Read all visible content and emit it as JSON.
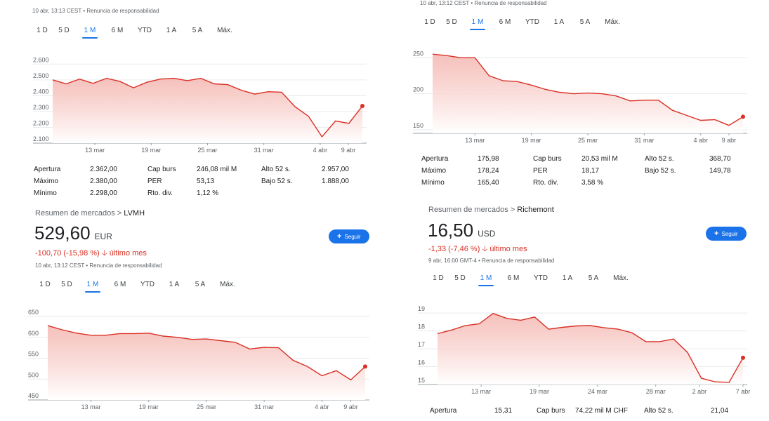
{
  "panels": {
    "tl": {
      "timestamp": "10 abr, 13:13 CEST • Renuncia de responsabilidad",
      "tabs": [
        "1 D",
        "5 D",
        "1 M",
        "6 M",
        "YTD",
        "1 A",
        "5 A",
        "Máx."
      ],
      "active_tab": "1 M",
      "stats": {
        "apertura_label": "Apertura",
        "apertura": "2.362,00",
        "maximo_label": "Máximo",
        "maximo": "2.380,00",
        "minimo_label": "Mínimo",
        "minimo": "2.298,00",
        "capburs_label": "Cap burs",
        "capburs": "246,08 mil M",
        "per_label": "PER",
        "per": "53,13",
        "rtodiv_label": "Rto. div.",
        "rtodiv": "1,12 %",
        "alto52_label": "Alto 52 s.",
        "alto52": "2.957,00",
        "bajo52_label": "Bajo 52 s.",
        "bajo52": "1.888,00"
      }
    },
    "tr": {
      "timestamp": "10 abr, 13:12 CEST • Renuncia de responsabilidad",
      "tabs": [
        "1 D",
        "5 D",
        "1 M",
        "6 M",
        "YTD",
        "1 A",
        "5 A",
        "Máx."
      ],
      "active_tab": "1 M",
      "stats": {
        "apertura_label": "Apertura",
        "apertura": "175,98",
        "maximo_label": "Máximo",
        "maximo": "178,24",
        "minimo_label": "Mínimo",
        "minimo": "165,40",
        "capburs_label": "Cap burs",
        "capburs": "20,53 mil M",
        "per_label": "PER",
        "per": "18,17",
        "rtodiv_label": "Rto. div.",
        "rtodiv": "3,58 %",
        "alto52_label": "Alto 52 s.",
        "alto52": "368,70",
        "bajo52_label": "Bajo 52 s.",
        "bajo52": "149,78"
      }
    },
    "bl": {
      "breadcrumb_prefix": "Resumen de mercados >",
      "company": "LVMH",
      "price": "529,60",
      "currency": "EUR",
      "change": "-100,70 (-15,98 %)",
      "change_arrow": "🡣",
      "change_period": "último mes",
      "follow_label": "Seguir",
      "timestamp": "10 abr, 13:12 CEST • Renuncia de responsabilidad",
      "tabs": [
        "1 D",
        "5 D",
        "1 M",
        "6 M",
        "YTD",
        "1 A",
        "5 A",
        "Máx."
      ],
      "active_tab": "1 M"
    },
    "br": {
      "breadcrumb_prefix": "Resumen de mercados >",
      "company": "Richemont",
      "price": "16,50",
      "currency": "USD",
      "change": "-1,33 (-7,46 %)",
      "change_arrow": "🡣",
      "change_period": "último mes",
      "follow_label": "Seguir",
      "timestamp": "9 abr, 16:00 GMT-4 • Renuncia de responsabilidad",
      "tabs": [
        "1 D",
        "5 D",
        "1 M",
        "6 M",
        "YTD",
        "1 A",
        "5 A",
        "Máx."
      ],
      "active_tab": "1 M",
      "stats": {
        "apertura_label": "Apertura",
        "apertura": "15,31",
        "capburs_label": "Cap burs",
        "capburs": "74,22 mil M CHF",
        "alto52_label": "Alto 52 s.",
        "alto52": "21,04"
      }
    }
  },
  "colors": {
    "line": "#d93025",
    "fill_top": "#f4b6b0",
    "fill_bottom": "#ffffff",
    "grid": "#e8eaed",
    "accent": "#1a73e8"
  },
  "chart_data": [
    {
      "type": "area",
      "x_ticks": [
        "13 mar",
        "19 mar",
        "25 mar",
        "31 mar",
        "4 abr",
        "9 abr"
      ],
      "y_ticks": [
        "2.600",
        "2.500",
        "2.400",
        "2.300",
        "2.200",
        "2.100"
      ],
      "ylim": [
        2100,
        2650
      ],
      "x_range": [
        0,
        22
      ],
      "x_tick_pos": [
        3,
        7,
        11,
        15,
        19,
        21
      ],
      "values": [
        2500,
        2475,
        2505,
        2478,
        2510,
        2490,
        2450,
        2485,
        2505,
        2510,
        2495,
        2510,
        2475,
        2470,
        2435,
        2410,
        2425,
        2422,
        2330,
        2270,
        2140,
        2240,
        2225,
        2335
      ]
    },
    {
      "type": "area",
      "x_ticks": [
        "13 mar",
        "19 mar",
        "25 mar",
        "31 mar",
        "4 abr",
        "9 abr"
      ],
      "y_ticks": [
        "250",
        "200",
        "150"
      ],
      "ylim": [
        145,
        262
      ],
      "x_range": [
        0,
        22
      ],
      "x_tick_pos": [
        3,
        7,
        11,
        15,
        19,
        21
      ],
      "values": [
        255,
        253,
        250,
        250,
        225,
        218,
        217,
        212,
        206,
        202,
        200,
        201,
        200,
        197,
        190,
        191,
        191,
        177,
        170,
        163,
        164,
        156,
        168
      ]
    },
    {
      "type": "area",
      "x_ticks": [
        "13 mar",
        "19 mar",
        "25 mar",
        "31 mar",
        "4 abr",
        "9 abr"
      ],
      "y_ticks": [
        "650",
        "600",
        "550",
        "500",
        "450"
      ],
      "ylim": [
        450,
        650
      ],
      "x_range": [
        0,
        22
      ],
      "x_tick_pos": [
        3,
        7,
        11,
        15,
        19,
        21
      ],
      "values": [
        628,
        618,
        610,
        605,
        605,
        609,
        609,
        610,
        603,
        600,
        595,
        596,
        592,
        588,
        572,
        576,
        575,
        545,
        530,
        508,
        520,
        498,
        530
      ]
    },
    {
      "type": "area",
      "x_ticks": [
        "13 mar",
        "19 mar",
        "24 mar",
        "28 mar",
        "2 abr",
        "7 abr"
      ],
      "y_ticks": [
        "19",
        "18",
        "17",
        "16",
        "15"
      ],
      "ylim": [
        15,
        19.4
      ],
      "x_range": [
        0,
        21
      ],
      "x_tick_pos": [
        3,
        7,
        11,
        15,
        18,
        21
      ],
      "values": [
        17.85,
        18.05,
        18.3,
        18.4,
        18.98,
        18.7,
        18.6,
        18.78,
        18.1,
        18.2,
        18.28,
        18.3,
        18.18,
        18.1,
        17.9,
        17.4,
        17.4,
        17.55,
        16.8,
        15.35,
        15.15,
        15.12,
        16.5
      ]
    }
  ]
}
